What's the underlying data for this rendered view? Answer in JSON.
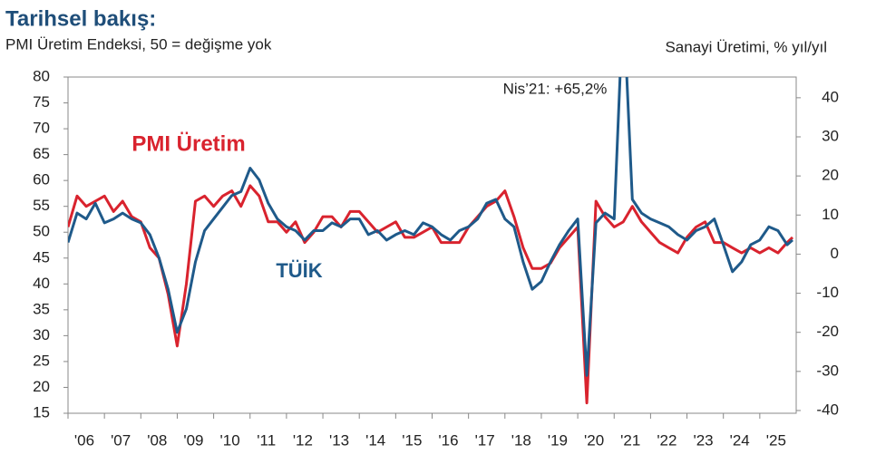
{
  "chart_data": {
    "type": "line",
    "title": "Tarihsel bakış:",
    "subtitle": "PMI Üretim Endeksi, 50 = değişme yok",
    "y2_label": "Sanayi Üretimi, % yıl/yıl",
    "annotation": "Nis’21: +65,2%",
    "x": [
      2006,
      2006.25,
      2006.5,
      2006.75,
      2007,
      2007.25,
      2007.5,
      2007.75,
      2008,
      2008.25,
      2008.5,
      2008.75,
      2009,
      2009.25,
      2009.5,
      2009.75,
      2010,
      2010.25,
      2010.5,
      2010.75,
      2011,
      2011.25,
      2011.5,
      2011.75,
      2012,
      2012.25,
      2012.5,
      2012.75,
      2013,
      2013.25,
      2013.5,
      2013.75,
      2014,
      2014.25,
      2014.5,
      2014.75,
      2015,
      2015.25,
      2015.5,
      2015.75,
      2016,
      2016.25,
      2016.5,
      2016.75,
      2017,
      2017.25,
      2017.5,
      2017.75,
      2018,
      2018.25,
      2018.5,
      2018.75,
      2019,
      2019.25,
      2019.5,
      2019.75,
      2020,
      2020.25,
      2020.5,
      2020.75,
      2021,
      2021.25,
      2021.5,
      2021.75,
      2022,
      2022.25,
      2022.5,
      2022.75,
      2023,
      2023.25,
      2023.5,
      2023.75,
      2024,
      2024.25,
      2024.5,
      2024.75,
      2025,
      2025.25,
      2025.5,
      2025.75,
      2025.9
    ],
    "series": [
      {
        "name": "PMI Üretim",
        "color": "#d9232e",
        "axis": "y",
        "values": [
          51,
          57,
          55,
          56,
          57,
          54,
          56,
          53,
          52,
          47,
          45,
          38,
          28,
          40,
          56,
          57,
          55,
          57,
          58,
          55,
          59,
          57,
          52,
          52,
          50,
          52,
          48,
          50,
          53,
          53,
          51,
          54,
          54,
          52,
          50,
          51,
          52,
          49,
          49,
          50,
          51,
          48,
          48,
          48,
          51,
          53,
          55,
          56,
          58,
          53,
          47,
          43,
          43,
          44,
          47,
          49,
          51,
          17,
          56,
          53,
          51,
          52,
          55,
          52,
          50,
          48,
          47,
          46,
          49,
          51,
          52,
          48,
          48,
          47,
          46,
          47,
          46,
          47,
          46,
          48,
          49
        ]
      },
      {
        "name": "TÜİK",
        "color": "#1f5a8a",
        "axis": "y2",
        "values": [
          3,
          10.5,
          9,
          13,
          8,
          9,
          10.5,
          9,
          8,
          5,
          -1,
          -9,
          -20,
          -14,
          -2,
          6,
          9,
          12,
          15,
          16,
          22,
          19,
          13,
          9,
          7,
          6,
          3.6,
          6,
          6,
          8,
          7,
          9,
          9,
          5,
          6,
          3.6,
          5,
          6,
          5,
          8,
          7,
          5,
          3.6,
          6,
          7,
          9,
          13,
          14,
          9,
          7,
          -2,
          -9,
          -7,
          -2,
          2.4,
          6,
          9,
          -31,
          8,
          10.5,
          9,
          65.2,
          14,
          10.5,
          9,
          8,
          7,
          5,
          3.6,
          6,
          7,
          9,
          2.4,
          -4.5,
          -2,
          2.4,
          3.6,
          7,
          6,
          2.4,
          3.6
        ]
      }
    ],
    "xlim": [
      2006,
      2026
    ],
    "xticks": [
      {
        "value": 2006,
        "label": "'06"
      },
      {
        "value": 2007,
        "label": "'07"
      },
      {
        "value": 2008,
        "label": "'08"
      },
      {
        "value": 2009,
        "label": "'09"
      },
      {
        "value": 2010,
        "label": "'10"
      },
      {
        "value": 2011,
        "label": "'11"
      },
      {
        "value": 2012,
        "label": "'12"
      },
      {
        "value": 2013,
        "label": "'13"
      },
      {
        "value": 2014,
        "label": "'14"
      },
      {
        "value": 2015,
        "label": "'15"
      },
      {
        "value": 2016,
        "label": "'16"
      },
      {
        "value": 2017,
        "label": "'17"
      },
      {
        "value": 2018,
        "label": "'18"
      },
      {
        "value": 2019,
        "label": "'19"
      },
      {
        "value": 2020,
        "label": "'20"
      },
      {
        "value": 2021,
        "label": "'21"
      },
      {
        "value": 2022,
        "label": "'22"
      },
      {
        "value": 2023,
        "label": "'23"
      },
      {
        "value": 2024,
        "label": "'24"
      },
      {
        "value": 2025,
        "label": "'25"
      }
    ],
    "ylim": [
      15,
      80
    ],
    "yticks": [
      15,
      20,
      25,
      30,
      35,
      40,
      45,
      50,
      55,
      60,
      65,
      70,
      75,
      80
    ],
    "y2lim": [
      -40.7,
      45.3
    ],
    "y2ticks": [
      -40,
      -30,
      -20,
      -10,
      0,
      10,
      20,
      30,
      40
    ]
  }
}
